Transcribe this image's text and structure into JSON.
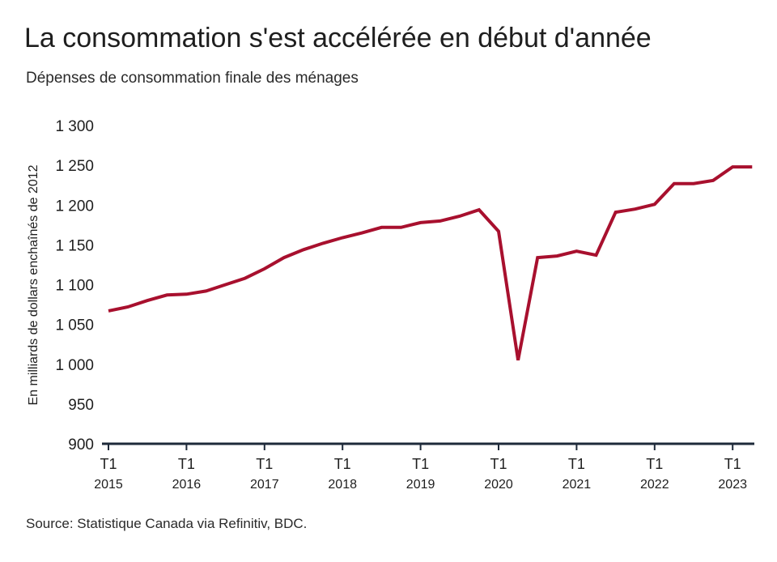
{
  "header": {
    "title": "La consommation s'est accélérée en début d'année",
    "subtitle": "Dépenses de consommation finale des ménages"
  },
  "footer": {
    "source": "Source: Statistique Canada via Refinitiv, BDC."
  },
  "colors": {
    "line": "#a8102e",
    "axis": "#1e2a3a",
    "text": "#1e1e1e"
  },
  "chart_data": {
    "type": "line",
    "title": "La consommation s'est accélérée en début d'année",
    "subtitle": "Dépenses de consommation finale des ménages",
    "xlabel": "",
    "ylabel": "En milliards de dollars enchaînés de 2012",
    "ylim": [
      900,
      1300
    ],
    "yticks": [
      900,
      950,
      1000,
      1050,
      1100,
      1150,
      1200,
      1250,
      1300
    ],
    "ytick_labels": [
      "900",
      "950",
      "1 000",
      "1 050",
      "1 100",
      "1 150",
      "1 200",
      "1 250",
      "1 300"
    ],
    "grid": false,
    "legend": "none",
    "x_ticks": [
      {
        "quarter": "T1",
        "year": "2015",
        "index": 0
      },
      {
        "quarter": "T1",
        "year": "2016",
        "index": 4
      },
      {
        "quarter": "T1",
        "year": "2017",
        "index": 8
      },
      {
        "quarter": "T1",
        "year": "2018",
        "index": 12
      },
      {
        "quarter": "T1",
        "year": "2019",
        "index": 16
      },
      {
        "quarter": "T1",
        "year": "2020",
        "index": 20
      },
      {
        "quarter": "T1",
        "year": "2021",
        "index": 24
      },
      {
        "quarter": "T1",
        "year": "2022",
        "index": 28
      },
      {
        "quarter": "T1",
        "year": "2023",
        "index": 32
      }
    ],
    "x": [
      "2015T1",
      "2015T2",
      "2015T3",
      "2015T4",
      "2016T1",
      "2016T2",
      "2016T3",
      "2016T4",
      "2017T1",
      "2017T2",
      "2017T3",
      "2017T4",
      "2018T1",
      "2018T2",
      "2018T3",
      "2018T4",
      "2019T1",
      "2019T2",
      "2019T3",
      "2019T4",
      "2020T1",
      "2020T2",
      "2020T3",
      "2020T4",
      "2021T1",
      "2021T2",
      "2021T3",
      "2021T4",
      "2022T1",
      "2022T2",
      "2022T3",
      "2022T4",
      "2023T1",
      "2023T2"
    ],
    "series": [
      {
        "values": [
          1067,
          1072,
          1080,
          1087,
          1088,
          1092,
          1100,
          1108,
          1120,
          1134,
          1144,
          1152,
          1159,
          1165,
          1172,
          1172,
          1178,
          1180,
          1186,
          1194,
          1167,
          1005,
          1134,
          1136,
          1142,
          1137,
          1191,
          1195,
          1201,
          1227,
          1227,
          1231,
          1248,
          1248
        ]
      }
    ]
  }
}
